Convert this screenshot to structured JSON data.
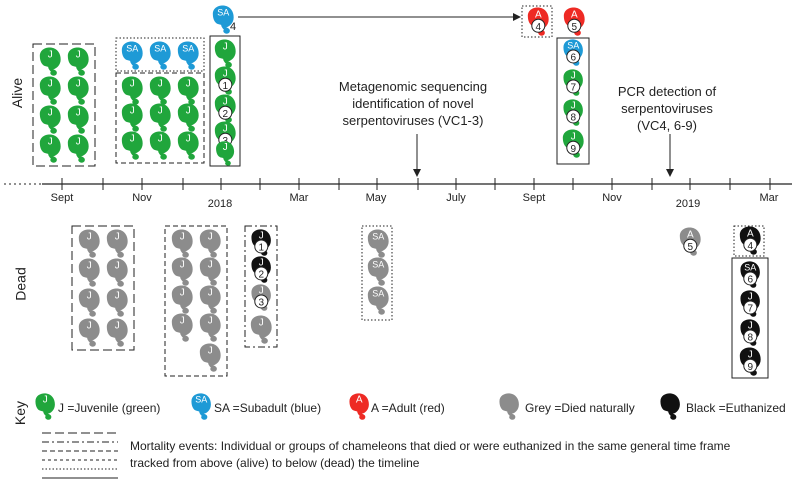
{
  "colors": {
    "juvenile": "#20a63c",
    "subadult": "#1e9ad6",
    "adult": "#ee2a24",
    "died_naturally": "#8c8c8c",
    "euthanized": "#111111"
  },
  "labels": {
    "alive": "Alive",
    "dead": "Dead",
    "key": "Key"
  },
  "timeline": {
    "ticks": [
      "Sept",
      "Nov",
      "2018",
      "Mar",
      "May",
      "July",
      "Sept",
      "Nov",
      "2019",
      "Mar"
    ]
  },
  "annotations": {
    "metagenomic": [
      "Metagenomic sequencing",
      "identification of novel",
      "serpentoviruses (VC1-3)"
    ],
    "pcr": [
      "PCR detection of",
      "serpentoviruses",
      "(VC4, 6-9)"
    ]
  },
  "animal_letters": {
    "J": "J",
    "SA": "SA",
    "A": "A"
  },
  "ids": [
    "1",
    "2",
    "3",
    "4",
    "5",
    "6",
    "7",
    "8",
    "9"
  ],
  "sa4_label": "4",
  "key": {
    "juvenile": "J =Juvenile (green)",
    "subadult": "SA =Subadult (blue)",
    "adult": "A =Adult (red)",
    "grey": "Grey =Died naturally",
    "black": "Black =Euthanized",
    "mortality": "Mortality events: Individual or groups of chameleons that died or were euthanized in the same general time frame tracked from above (alive) to below (dead) the timeline"
  }
}
